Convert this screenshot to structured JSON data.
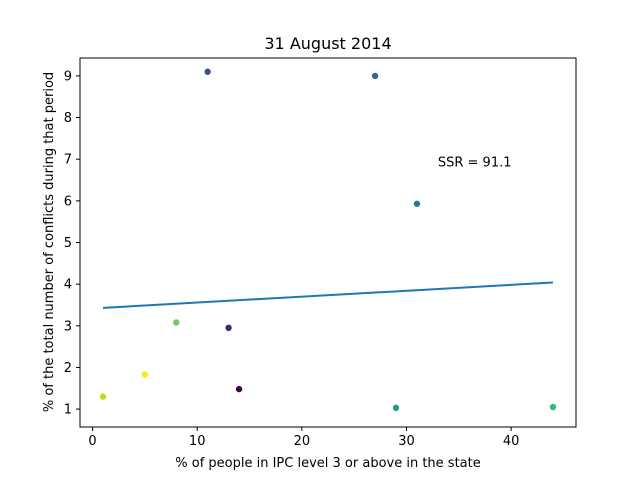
{
  "chart_data": {
    "type": "scatter",
    "title": "31 August 2014",
    "xlabel": "% of people in IPC level 3 or above in the state",
    "ylabel": "% of the total number of conflicts during that period",
    "xlim": [
      -1.2,
      46.2
    ],
    "ylim": [
      0.57,
      9.43
    ],
    "xticks": [
      0,
      10,
      20,
      30,
      40
    ],
    "yticks": [
      1,
      2,
      3,
      4,
      5,
      6,
      7,
      8,
      9
    ],
    "grid": false,
    "points": [
      {
        "x": 11,
        "y": 9.1,
        "color": "#3b528b"
      },
      {
        "x": 27,
        "y": 9.0,
        "color": "#31688e"
      },
      {
        "x": 31,
        "y": 5.93,
        "color": "#2a788e"
      },
      {
        "x": 8,
        "y": 3.08,
        "color": "#6ccd5a"
      },
      {
        "x": 13,
        "y": 2.95,
        "color": "#482475"
      },
      {
        "x": 5,
        "y": 1.83,
        "color": "#fde725"
      },
      {
        "x": 14,
        "y": 1.48,
        "color": "#440154"
      },
      {
        "x": 1,
        "y": 1.3,
        "color": "#b5de2b"
      },
      {
        "x": 29,
        "y": 1.03,
        "color": "#1f9e89"
      },
      {
        "x": 44,
        "y": 1.05,
        "color": "#35b779"
      }
    ],
    "fit_line": {
      "x": [
        1,
        44
      ],
      "y": [
        3.43,
        4.04
      ],
      "color": "#1f77b4"
    },
    "annotation": {
      "text": "SSR = 91.1",
      "x": 33,
      "y": 6.83
    }
  }
}
